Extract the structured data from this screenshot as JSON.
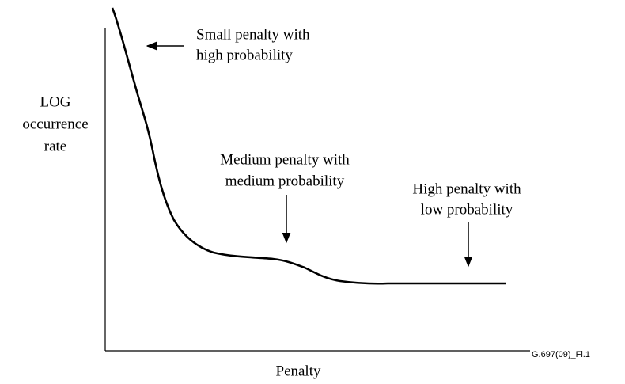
{
  "y_label": [
    "LOG",
    "occurrence",
    "rate"
  ],
  "x_label": "Penalty",
  "figure_id": "G.697(09)_Fl.1",
  "annotations": [
    {
      "lines": [
        "Small penalty with",
        "high probability"
      ]
    },
    {
      "lines": [
        "Medium penalty with",
        "medium probability"
      ]
    },
    {
      "lines": [
        "High penalty with",
        "low probability"
      ]
    }
  ]
}
